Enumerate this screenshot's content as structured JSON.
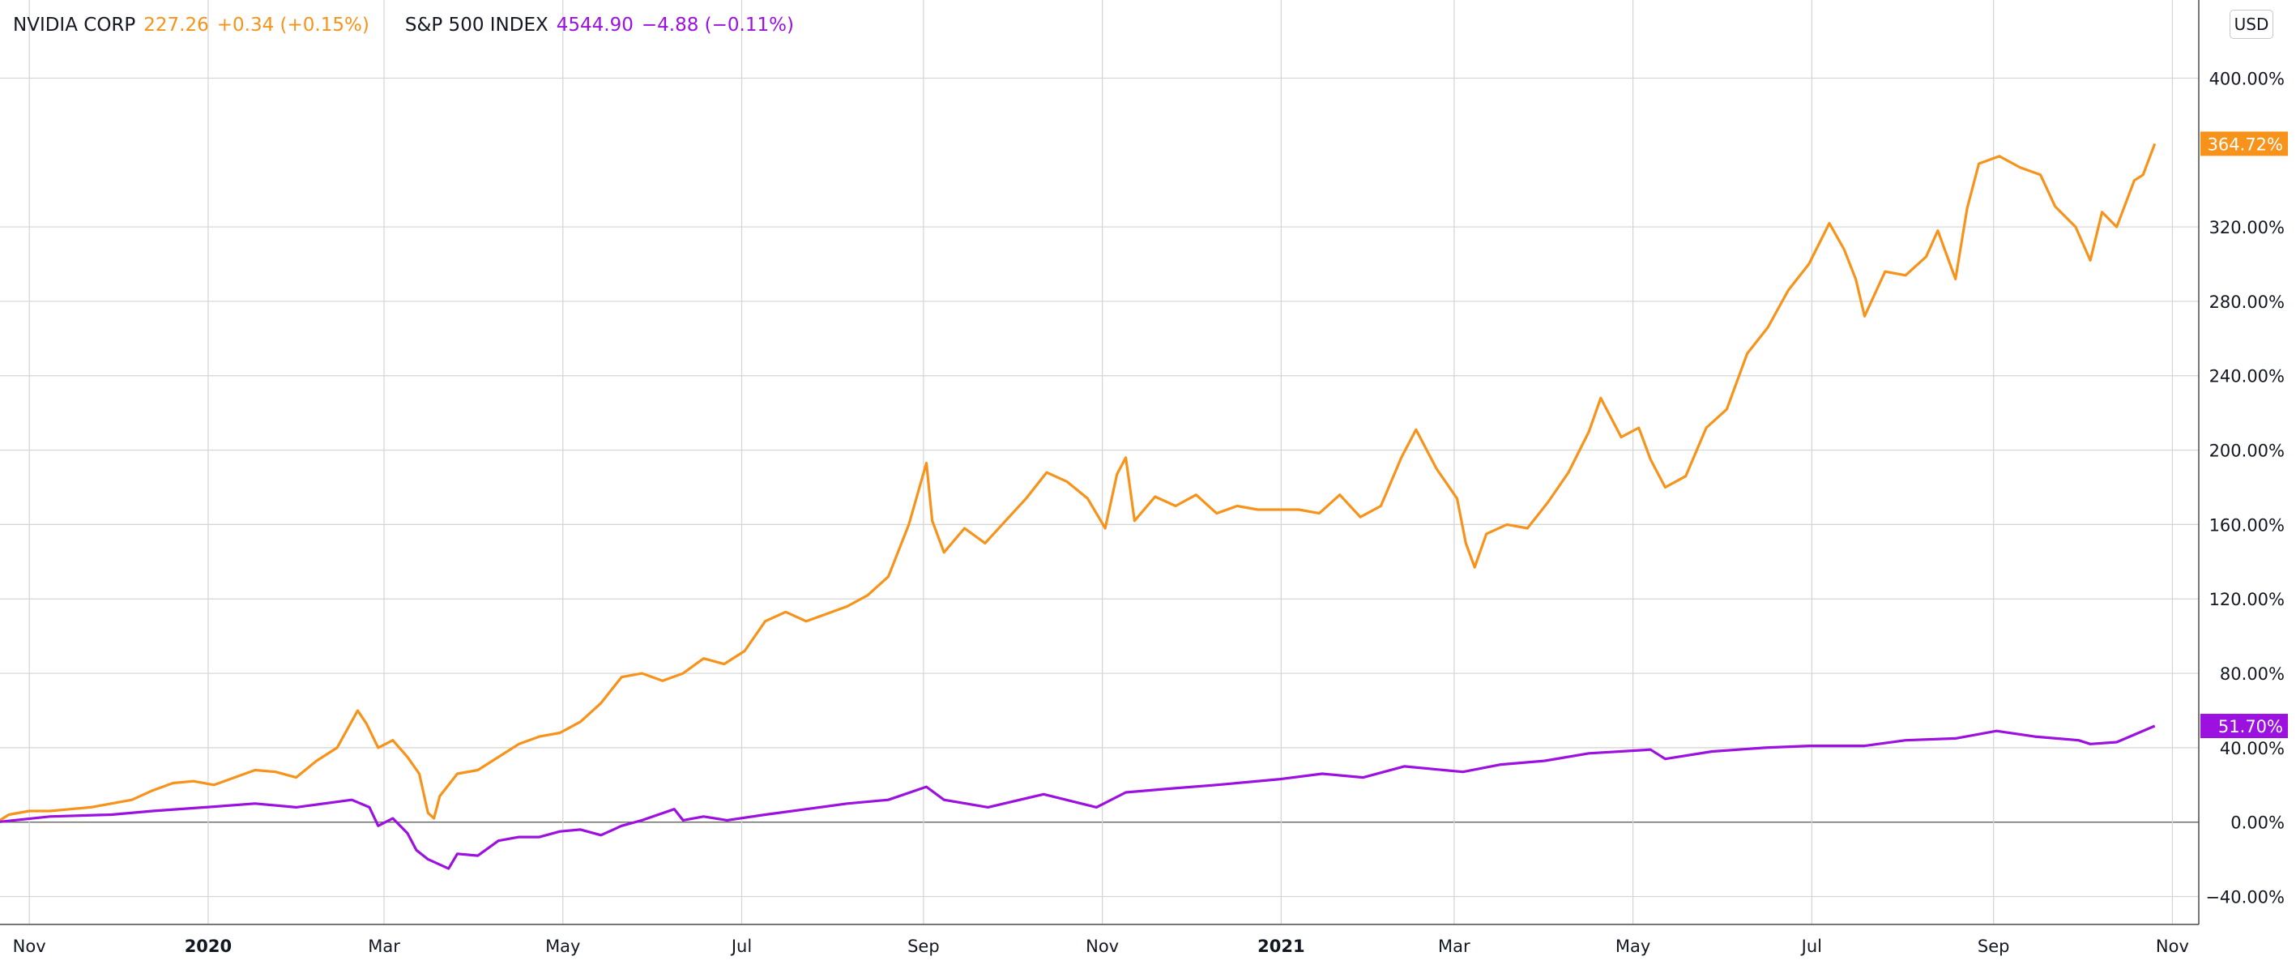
{
  "legend": {
    "nvda": {
      "name": "NVIDIA CORP",
      "price": "227.26",
      "change": "+0.34 (+0.15%)"
    },
    "spx": {
      "name": "S&P 500 INDEX",
      "price": "4544.90",
      "change": "−4.88 (−0.11%)"
    }
  },
  "currency_button": "USD",
  "chart_data": {
    "type": "line",
    "y_axis": {
      "min": -55,
      "max": 442,
      "unit": "%",
      "position": "right",
      "ticks": [
        400,
        320,
        280,
        240,
        200,
        160,
        120,
        80,
        40,
        0,
        -40
      ],
      "tick_labels": [
        "400.00%",
        "320.00%",
        "280.00%",
        "240.00%",
        "200.00%",
        "160.00%",
        "120.00%",
        "80.00%",
        "40.00%",
        "0.00%",
        "−40.00%"
      ]
    },
    "x_axis": {
      "start": "2019-10-22",
      "end": "2021-11-10",
      "ticks": [
        {
          "date": "2019-11-01",
          "label": "Nov",
          "bold": false
        },
        {
          "date": "2020-01-01",
          "label": "2020",
          "bold": true
        },
        {
          "date": "2020-03-01",
          "label": "Mar",
          "bold": false
        },
        {
          "date": "2020-05-01",
          "label": "May",
          "bold": false
        },
        {
          "date": "2020-07-01",
          "label": "Jul",
          "bold": false
        },
        {
          "date": "2020-09-01",
          "label": "Sep",
          "bold": false
        },
        {
          "date": "2020-11-01",
          "label": "Nov",
          "bold": false
        },
        {
          "date": "2021-01-01",
          "label": "2021",
          "bold": true
        },
        {
          "date": "2021-03-01",
          "label": "Mar",
          "bold": false
        },
        {
          "date": "2021-05-01",
          "label": "May",
          "bold": false
        },
        {
          "date": "2021-07-01",
          "label": "Jul",
          "bold": false
        },
        {
          "date": "2021-09-01",
          "label": "Sep",
          "bold": false
        },
        {
          "date": "2021-11-01",
          "label": "Nov",
          "bold": false
        }
      ]
    },
    "grid": true,
    "zero_line": 0,
    "series": [
      {
        "name": "NVIDIA CORP",
        "color": "#f7931a",
        "last_value_label": "364.72%",
        "points": [
          [
            "2019-10-21",
            0
          ],
          [
            "2019-10-25",
            4
          ],
          [
            "2019-11-01",
            6
          ],
          [
            "2019-11-08",
            6
          ],
          [
            "2019-11-15",
            7
          ],
          [
            "2019-11-22",
            8
          ],
          [
            "2019-11-29",
            10
          ],
          [
            "2019-12-06",
            12
          ],
          [
            "2019-12-13",
            17
          ],
          [
            "2019-12-20",
            21
          ],
          [
            "2019-12-27",
            22
          ],
          [
            "2020-01-03",
            20
          ],
          [
            "2020-01-10",
            24
          ],
          [
            "2020-01-17",
            28
          ],
          [
            "2020-01-24",
            27
          ],
          [
            "2020-01-31",
            24
          ],
          [
            "2020-02-07",
            33
          ],
          [
            "2020-02-14",
            40
          ],
          [
            "2020-02-21",
            60
          ],
          [
            "2020-02-24",
            53
          ],
          [
            "2020-02-28",
            40
          ],
          [
            "2020-03-04",
            44
          ],
          [
            "2020-03-09",
            35
          ],
          [
            "2020-03-13",
            26
          ],
          [
            "2020-03-16",
            5
          ],
          [
            "2020-03-18",
            2
          ],
          [
            "2020-03-20",
            14
          ],
          [
            "2020-03-26",
            26
          ],
          [
            "2020-04-02",
            28
          ],
          [
            "2020-04-09",
            35
          ],
          [
            "2020-04-16",
            42
          ],
          [
            "2020-04-23",
            46
          ],
          [
            "2020-04-30",
            48
          ],
          [
            "2020-05-07",
            54
          ],
          [
            "2020-05-14",
            64
          ],
          [
            "2020-05-21",
            78
          ],
          [
            "2020-05-28",
            80
          ],
          [
            "2020-06-04",
            76
          ],
          [
            "2020-06-11",
            80
          ],
          [
            "2020-06-18",
            88
          ],
          [
            "2020-06-25",
            85
          ],
          [
            "2020-07-02",
            92
          ],
          [
            "2020-07-09",
            108
          ],
          [
            "2020-07-16",
            113
          ],
          [
            "2020-07-23",
            108
          ],
          [
            "2020-07-30",
            112
          ],
          [
            "2020-08-06",
            116
          ],
          [
            "2020-08-13",
            122
          ],
          [
            "2020-08-20",
            132
          ],
          [
            "2020-08-27",
            160
          ],
          [
            "2020-09-02",
            193
          ],
          [
            "2020-09-04",
            162
          ],
          [
            "2020-09-08",
            145
          ],
          [
            "2020-09-15",
            158
          ],
          [
            "2020-09-22",
            150
          ],
          [
            "2020-09-29",
            162
          ],
          [
            "2020-10-06",
            174
          ],
          [
            "2020-10-13",
            188
          ],
          [
            "2020-10-20",
            183
          ],
          [
            "2020-10-27",
            174
          ],
          [
            "2020-11-02",
            158
          ],
          [
            "2020-11-06",
            187
          ],
          [
            "2020-11-09",
            196
          ],
          [
            "2020-11-12",
            162
          ],
          [
            "2020-11-19",
            175
          ],
          [
            "2020-11-26",
            170
          ],
          [
            "2020-12-03",
            176
          ],
          [
            "2020-12-10",
            166
          ],
          [
            "2020-12-17",
            170
          ],
          [
            "2020-12-24",
            168
          ],
          [
            "2020-12-31",
            168
          ],
          [
            "2021-01-07",
            168
          ],
          [
            "2021-01-14",
            166
          ],
          [
            "2021-01-21",
            176
          ],
          [
            "2021-01-28",
            164
          ],
          [
            "2021-02-04",
            170
          ],
          [
            "2021-02-11",
            196
          ],
          [
            "2021-02-16",
            211
          ],
          [
            "2021-02-23",
            190
          ],
          [
            "2021-03-02",
            174
          ],
          [
            "2021-03-05",
            150
          ],
          [
            "2021-03-08",
            137
          ],
          [
            "2021-03-12",
            155
          ],
          [
            "2021-03-19",
            160
          ],
          [
            "2021-03-26",
            158
          ],
          [
            "2021-04-02",
            172
          ],
          [
            "2021-04-09",
            188
          ],
          [
            "2021-04-16",
            210
          ],
          [
            "2021-04-20",
            228
          ],
          [
            "2021-04-27",
            207
          ],
          [
            "2021-05-03",
            212
          ],
          [
            "2021-05-07",
            195
          ],
          [
            "2021-05-12",
            180
          ],
          [
            "2021-05-19",
            186
          ],
          [
            "2021-05-26",
            212
          ],
          [
            "2021-06-02",
            222
          ],
          [
            "2021-06-09",
            252
          ],
          [
            "2021-06-16",
            266
          ],
          [
            "2021-06-23",
            286
          ],
          [
            "2021-06-30",
            300
          ],
          [
            "2021-07-07",
            322
          ],
          [
            "2021-07-12",
            308
          ],
          [
            "2021-07-16",
            292
          ],
          [
            "2021-07-19",
            272
          ],
          [
            "2021-07-26",
            296
          ],
          [
            "2021-08-02",
            294
          ],
          [
            "2021-08-09",
            304
          ],
          [
            "2021-08-13",
            318
          ],
          [
            "2021-08-19",
            292
          ],
          [
            "2021-08-23",
            330
          ],
          [
            "2021-08-27",
            354
          ],
          [
            "2021-09-03",
            358
          ],
          [
            "2021-09-10",
            352
          ],
          [
            "2021-09-17",
            348
          ],
          [
            "2021-09-22",
            331
          ],
          [
            "2021-09-29",
            320
          ],
          [
            "2021-10-04",
            302
          ],
          [
            "2021-10-08",
            328
          ],
          [
            "2021-10-13",
            320
          ],
          [
            "2021-10-19",
            345
          ],
          [
            "2021-10-22",
            348
          ],
          [
            "2021-10-26",
            364.72
          ]
        ]
      },
      {
        "name": "S&P 500 INDEX",
        "color": "#9c10e0",
        "last_value_label": "51.70%",
        "points": [
          [
            "2019-10-21",
            0
          ],
          [
            "2019-11-08",
            3
          ],
          [
            "2019-11-29",
            4
          ],
          [
            "2019-12-13",
            6
          ],
          [
            "2019-12-31",
            8
          ],
          [
            "2020-01-17",
            10
          ],
          [
            "2020-01-31",
            8
          ],
          [
            "2020-02-19",
            12
          ],
          [
            "2020-02-25",
            8
          ],
          [
            "2020-02-28",
            -2
          ],
          [
            "2020-03-04",
            2
          ],
          [
            "2020-03-09",
            -6
          ],
          [
            "2020-03-12",
            -15
          ],
          [
            "2020-03-16",
            -20
          ],
          [
            "2020-03-23",
            -25
          ],
          [
            "2020-03-26",
            -17
          ],
          [
            "2020-04-02",
            -18
          ],
          [
            "2020-04-09",
            -10
          ],
          [
            "2020-04-16",
            -8
          ],
          [
            "2020-04-23",
            -8
          ],
          [
            "2020-04-30",
            -5
          ],
          [
            "2020-05-07",
            -4
          ],
          [
            "2020-05-14",
            -7
          ],
          [
            "2020-05-21",
            -2
          ],
          [
            "2020-05-28",
            1
          ],
          [
            "2020-06-08",
            7
          ],
          [
            "2020-06-11",
            1
          ],
          [
            "2020-06-18",
            3
          ],
          [
            "2020-06-26",
            1
          ],
          [
            "2020-07-09",
            4
          ],
          [
            "2020-07-23",
            7
          ],
          [
            "2020-08-06",
            10
          ],
          [
            "2020-08-20",
            12
          ],
          [
            "2020-09-02",
            19
          ],
          [
            "2020-09-08",
            12
          ],
          [
            "2020-09-23",
            8
          ],
          [
            "2020-10-12",
            15
          ],
          [
            "2020-10-30",
            8
          ],
          [
            "2020-11-09",
            16
          ],
          [
            "2020-11-24",
            18
          ],
          [
            "2020-12-10",
            20
          ],
          [
            "2020-12-31",
            23
          ],
          [
            "2021-01-15",
            26
          ],
          [
            "2021-01-29",
            24
          ],
          [
            "2021-02-12",
            30
          ],
          [
            "2021-03-04",
            27
          ],
          [
            "2021-03-17",
            31
          ],
          [
            "2021-04-01",
            33
          ],
          [
            "2021-04-16",
            37
          ],
          [
            "2021-05-07",
            39
          ],
          [
            "2021-05-12",
            34
          ],
          [
            "2021-05-28",
            38
          ],
          [
            "2021-06-15",
            40
          ],
          [
            "2021-06-30",
            41
          ],
          [
            "2021-07-19",
            41
          ],
          [
            "2021-08-02",
            44
          ],
          [
            "2021-08-19",
            45
          ],
          [
            "2021-09-02",
            49
          ],
          [
            "2021-09-15",
            46
          ],
          [
            "2021-09-30",
            44
          ],
          [
            "2021-10-04",
            42
          ],
          [
            "2021-10-13",
            43
          ],
          [
            "2021-10-26",
            51.7
          ]
        ]
      }
    ]
  }
}
